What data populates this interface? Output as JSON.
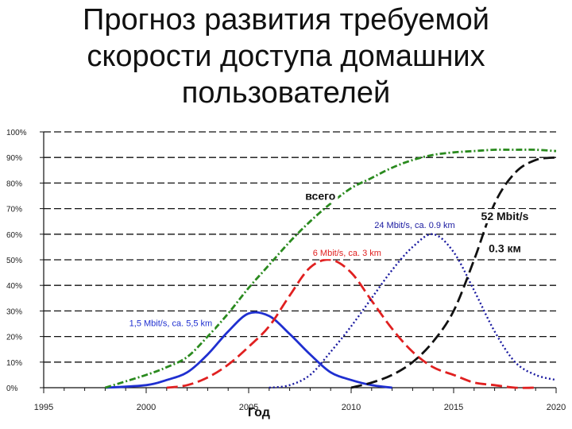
{
  "title": {
    "line1": "Прогноз развития требуемой",
    "line2": "скорости доступа домашних",
    "line3": "пользователей"
  },
  "chart_data": {
    "type": "line",
    "xlabel": "Год",
    "ylabel": "",
    "xlim": [
      1995,
      2020
    ],
    "ylim": [
      0,
      100
    ],
    "x_ticks": [
      "1995",
      "2000",
      "2005",
      "2010",
      "2015",
      "2020"
    ],
    "y_ticks": [
      "0%",
      "10%",
      "20%",
      "30%",
      "40%",
      "50%",
      "60%",
      "70%",
      "80%",
      "90%",
      "100%"
    ],
    "grid": "horizontal dashed",
    "series": [
      {
        "name": "1,5 Mbit/s, ca. 5,5 km",
        "color": "#1f2fd0",
        "style": "solid",
        "x": [
          1998,
          2000,
          2001,
          2002,
          2003,
          2004,
          2005,
          2006,
          2007,
          2008,
          2009,
          2010,
          2011,
          2012
        ],
        "y": [
          0,
          1,
          3,
          6,
          13,
          22,
          29,
          28,
          21,
          13,
          6,
          3,
          1,
          0
        ]
      },
      {
        "name": "6 Mbit/s, ca. 3 km",
        "color": "#e02020",
        "style": "dashed",
        "x": [
          2001,
          2002,
          2003,
          2004,
          2005,
          2006,
          2007,
          2008,
          2009,
          2010,
          2011,
          2012,
          2013,
          2014,
          2015,
          2016,
          2017,
          2018,
          2019
        ],
        "y": [
          0,
          1,
          4,
          9,
          16,
          24,
          36,
          47,
          50,
          45,
          34,
          23,
          14,
          8,
          5,
          2,
          1,
          0,
          0
        ]
      },
      {
        "name": "24 Mbit/s, ca. 0.9 km",
        "color": "#1a1aa0",
        "style": "dotted",
        "x": [
          2006,
          2007,
          2008,
          2009,
          2010,
          2011,
          2012,
          2013,
          2014,
          2015,
          2016,
          2017,
          2018,
          2019,
          2020
        ],
        "y": [
          0,
          1,
          5,
          14,
          24,
          35,
          46,
          55,
          60,
          53,
          38,
          22,
          10,
          5,
          3
        ]
      },
      {
        "name": "52 Mbit/s 0.3 км",
        "color": "#111111",
        "style": "dashed",
        "x": [
          2010,
          2011,
          2012,
          2013,
          2014,
          2015,
          2016,
          2017,
          2018,
          2019,
          2020
        ],
        "y": [
          0,
          2,
          5,
          10,
          18,
          30,
          50,
          72,
          84,
          89,
          90
        ]
      },
      {
        "name": "всего",
        "color": "#2a8a1e",
        "style": "dash-dot",
        "x": [
          1998,
          2000,
          2001,
          2002,
          2003,
          2004,
          2005,
          2006,
          2007,
          2008,
          2009,
          2010,
          2011,
          2012,
          2013,
          2014,
          2015,
          2016,
          2017,
          2018,
          2019,
          2020
        ],
        "y": [
          0,
          5,
          8,
          12,
          20,
          29,
          39,
          48,
          57,
          65,
          72,
          78,
          82,
          86,
          89,
          91,
          92,
          92.5,
          93,
          93,
          93,
          92.5
        ]
      }
    ],
    "annotations": [
      {
        "text": "1,5 Mbit/s, ca. 5,5 km",
        "x": 2001.2,
        "y": 24,
        "color": "#1f2fd0"
      },
      {
        "text": "6 Mbit/s, ca. 3 km",
        "x": 2009.8,
        "y": 51.5,
        "color": "#e02020"
      },
      {
        "text": "24 Mbit/s, ca. 0.9 km",
        "x": 2013.1,
        "y": 62.5,
        "color": "#1a1aa0"
      },
      {
        "text": "всего",
        "x": 2008.5,
        "y": 73.5,
        "color": "#111111"
      },
      {
        "text": "52 Mbit/s",
        "x": 2017.5,
        "y": 65.5,
        "color": "#111111"
      },
      {
        "text": "0.3 км",
        "x": 2017.5,
        "y": 53,
        "color": "#111111"
      }
    ]
  }
}
